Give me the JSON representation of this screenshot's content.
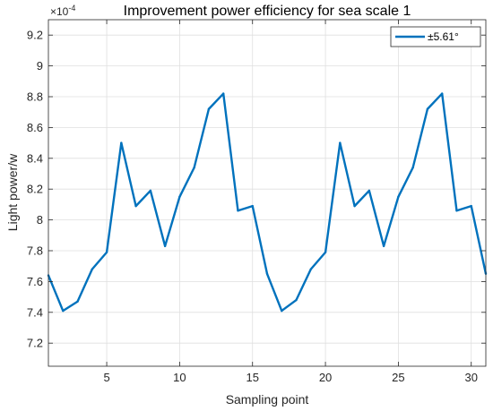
{
  "chart_data": {
    "type": "line",
    "title": "Improvement power efficiency for sea scale 1",
    "xlabel": "Sampling point",
    "ylabel": "Light power/w",
    "y_exponent_label": "×10",
    "y_exponent_power": "-4",
    "xlim": [
      1,
      31
    ],
    "ylim": [
      7.05,
      9.3
    ],
    "x_ticks": [
      5,
      10,
      15,
      20,
      25,
      30
    ],
    "y_ticks": [
      7.2,
      7.4,
      7.6,
      7.8,
      8,
      8.2,
      8.4,
      8.6,
      8.8,
      9,
      9.2
    ],
    "y_tick_labels": [
      "7.2",
      "7.4",
      "7.6",
      "7.8",
      "8",
      "8.2",
      "8.4",
      "8.6",
      "8.8",
      "9",
      "9.2"
    ],
    "grid": true,
    "legend_position": "top-right",
    "series": [
      {
        "name": "±5.61°",
        "color": "#0072BD",
        "x": [
          1,
          2,
          3,
          4,
          5,
          6,
          7,
          8,
          9,
          10,
          11,
          12,
          13,
          14,
          15,
          16,
          17,
          18,
          19,
          20,
          21,
          22,
          23,
          24,
          25,
          26,
          27,
          28,
          29,
          30,
          31
        ],
        "values": [
          7.64,
          7.41,
          7.47,
          7.68,
          7.79,
          8.5,
          8.09,
          8.19,
          7.83,
          8.15,
          8.34,
          8.72,
          8.82,
          8.06,
          8.09,
          7.65,
          7.41,
          7.48,
          7.68,
          7.79,
          8.5,
          8.09,
          8.19,
          7.83,
          8.15,
          8.34,
          8.72,
          8.82,
          8.06,
          8.09,
          7.65
        ]
      }
    ]
  }
}
